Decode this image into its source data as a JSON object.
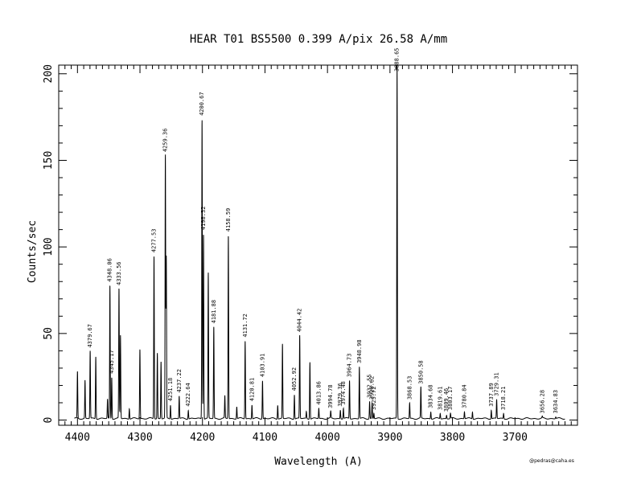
{
  "chart_data": {
    "type": "line",
    "title": "HEAR  T01  BS5500  0.399 A/pix  26.58 A/mm",
    "xlabel": "Wavelength (A)",
    "ylabel": "Counts/sec",
    "credit": "@pedras@caha.es",
    "xlim": [
      4430,
      3600
    ],
    "ylim": [
      -3,
      205
    ],
    "x_ticks": [
      4400,
      4300,
      4200,
      4100,
      4000,
      3900,
      3800,
      3700
    ],
    "y_ticks": [
      0,
      50,
      100,
      150,
      200
    ],
    "grid": false,
    "series_peaks": [
      {
        "x": 4400.0,
        "y": 27
      },
      {
        "x": 4387.9,
        "y": 22
      },
      {
        "x": 4379.67,
        "y": 39
      },
      {
        "x": 4370.7,
        "y": 36
      },
      {
        "x": 4351.9,
        "y": 11
      },
      {
        "x": 4348.06,
        "y": 77
      },
      {
        "x": 4345.17,
        "y": 24
      },
      {
        "x": 4333.56,
        "y": 75
      },
      {
        "x": 4331.2,
        "y": 48
      },
      {
        "x": 4317.0,
        "y": 6
      },
      {
        "x": 4300.1,
        "y": 40
      },
      {
        "x": 4277.53,
        "y": 94
      },
      {
        "x": 4272.2,
        "y": 38
      },
      {
        "x": 4266.3,
        "y": 33
      },
      {
        "x": 4259.36,
        "y": 152
      },
      {
        "x": 4257.9,
        "y": 93
      },
      {
        "x": 4251.18,
        "y": 8
      },
      {
        "x": 4237.22,
        "y": 13
      },
      {
        "x": 4222.64,
        "y": 5
      },
      {
        "x": 4200.67,
        "y": 173
      },
      {
        "x": 4198.32,
        "y": 107
      },
      {
        "x": 4190.7,
        "y": 84
      },
      {
        "x": 4181.88,
        "y": 53
      },
      {
        "x": 4164.2,
        "y": 13
      },
      {
        "x": 4158.59,
        "y": 106
      },
      {
        "x": 4145.1,
        "y": 7
      },
      {
        "x": 4131.72,
        "y": 45
      },
      {
        "x": 4120.81,
        "y": 8
      },
      {
        "x": 4103.91,
        "y": 22
      },
      {
        "x": 4079.6,
        "y": 8
      },
      {
        "x": 4072.0,
        "y": 43
      },
      {
        "x": 4052.92,
        "y": 14
      },
      {
        "x": 4044.42,
        "y": 48
      },
      {
        "x": 4033.8,
        "y": 4
      },
      {
        "x": 4028.1,
        "y": 33
      },
      {
        "x": 4013.86,
        "y": 6
      },
      {
        "x": 3994.78,
        "y": 4
      },
      {
        "x": 3979.36,
        "y": 5
      },
      {
        "x": 3974.48,
        "y": 6
      },
      {
        "x": 3964.73,
        "y": 22
      },
      {
        "x": 3948.98,
        "y": 30
      },
      {
        "x": 3932.55,
        "y": 10
      },
      {
        "x": 3928.62,
        "y": 9
      },
      {
        "x": 3925.72,
        "y": 3
      },
      {
        "x": 3888.65,
        "y": 204
      },
      {
        "x": 3868.53,
        "y": 9
      },
      {
        "x": 3850.58,
        "y": 18
      },
      {
        "x": 3834.68,
        "y": 4
      },
      {
        "x": 3819.61,
        "y": 3
      },
      {
        "x": 3809.46,
        "y": 2
      },
      {
        "x": 3803.17,
        "y": 3
      },
      {
        "x": 3780.84,
        "y": 4
      },
      {
        "x": 3768.0,
        "y": 4
      },
      {
        "x": 3737.89,
        "y": 5
      },
      {
        "x": 3729.31,
        "y": 11
      },
      {
        "x": 3718.21,
        "y": 3
      },
      {
        "x": 3656.28,
        "y": 1
      },
      {
        "x": 3634.83,
        "y": 1
      }
    ],
    "annotations": [
      {
        "label": "4379.67",
        "x": 4379.67,
        "y": 39
      },
      {
        "label": "4348.06",
        "x": 4348.06,
        "y": 77
      },
      {
        "label": "4345.17",
        "x": 4345.17,
        "y": 24
      },
      {
        "label": "4333.56",
        "x": 4333.56,
        "y": 75
      },
      {
        "label": "4277.53",
        "x": 4277.53,
        "y": 94
      },
      {
        "label": "4259.36",
        "x": 4259.36,
        "y": 152
      },
      {
        "label": "4251.18",
        "x": 4251.18,
        "y": 8
      },
      {
        "label": "4237.22",
        "x": 4237.22,
        "y": 13
      },
      {
        "label": "4222.64",
        "x": 4222.64,
        "y": 5
      },
      {
        "label": "4200.67",
        "x": 4200.67,
        "y": 173
      },
      {
        "label": "4198.32",
        "x": 4198.32,
        "y": 107
      },
      {
        "label": "4181.88",
        "x": 4181.88,
        "y": 53
      },
      {
        "label": "4158.59",
        "x": 4158.59,
        "y": 106
      },
      {
        "label": "4131.72",
        "x": 4131.72,
        "y": 45
      },
      {
        "label": "4120.81",
        "x": 4120.81,
        "y": 8
      },
      {
        "label": "4103.91",
        "x": 4103.91,
        "y": 22
      },
      {
        "label": "4052.92",
        "x": 4052.92,
        "y": 14
      },
      {
        "label": "4044.42",
        "x": 4044.42,
        "y": 48
      },
      {
        "label": "4013.86",
        "x": 4013.86,
        "y": 6
      },
      {
        "label": "3994.78",
        "x": 3994.78,
        "y": 4
      },
      {
        "label": "3979.36",
        "x": 3979.36,
        "y": 5
      },
      {
        "label": "3974.48",
        "x": 3974.48,
        "y": 6
      },
      {
        "label": "3964.73",
        "x": 3964.73,
        "y": 22
      },
      {
        "label": "3948.98",
        "x": 3948.98,
        "y": 30
      },
      {
        "label": "3932.55",
        "x": 3932.55,
        "y": 10
      },
      {
        "label": "3928.62",
        "x": 3928.62,
        "y": 9
      },
      {
        "label": "3925.72",
        "x": 3925.72,
        "y": 3
      },
      {
        "label": "3888.65",
        "x": 3888.65,
        "y": 204
      },
      {
        "label": "3868.53",
        "x": 3868.53,
        "y": 9
      },
      {
        "label": "3850.58",
        "x": 3850.58,
        "y": 18
      },
      {
        "label": "3834.68",
        "x": 3834.68,
        "y": 4
      },
      {
        "label": "3819.61",
        "x": 3819.61,
        "y": 3
      },
      {
        "label": "3809.46",
        "x": 3809.46,
        "y": 2
      },
      {
        "label": "3803.17",
        "x": 3803.17,
        "y": 3
      },
      {
        "label": "3780.84",
        "x": 3780.84,
        "y": 4
      },
      {
        "label": "3737.89",
        "x": 3737.89,
        "y": 5
      },
      {
        "label": "3729.31",
        "x": 3729.31,
        "y": 11
      },
      {
        "label": "3718.21",
        "x": 3718.21,
        "y": 3
      },
      {
        "label": "3656.28",
        "x": 3656.28,
        "y": 1
      },
      {
        "label": "3634.83",
        "x": 3634.83,
        "y": 1
      }
    ],
    "colors": {
      "line": "#000000",
      "background": "#ffffff"
    }
  }
}
